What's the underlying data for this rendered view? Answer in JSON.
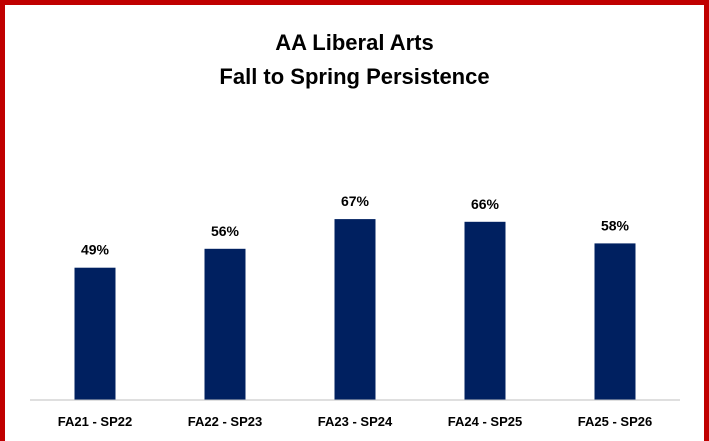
{
  "chart_data": {
    "type": "bar",
    "title_line1": "AA Liberal Arts",
    "title_line2": "Fall to Spring Persistence",
    "categories": [
      "FA21 - SP22",
      "FA22 - SP23",
      "FA23 - SP24",
      "FA24 - SP25",
      "FA25 - SP26"
    ],
    "values": [
      49,
      56,
      67,
      66,
      58
    ],
    "value_labels": [
      "49%",
      "56%",
      "67%",
      "66%",
      "58%"
    ],
    "unit": "%",
    "xlabel": "",
    "ylabel": "",
    "ylim": [
      0,
      100
    ],
    "grid": false,
    "legend": "none",
    "colors": {
      "bar": "#002060",
      "frame": "#c00000",
      "axis": "#bfbfbf"
    }
  }
}
